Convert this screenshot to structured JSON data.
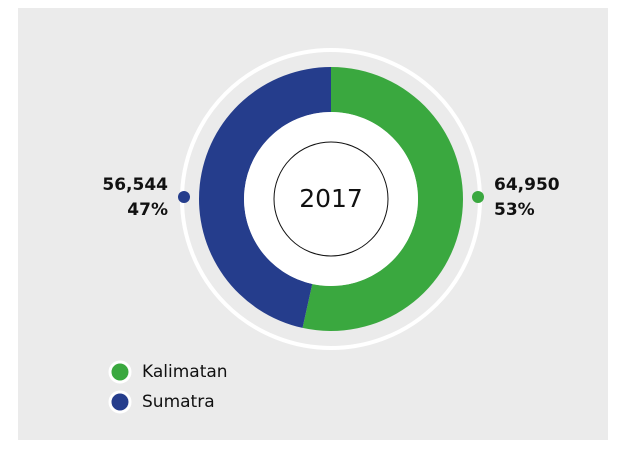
{
  "chart_data": {
    "type": "donut",
    "center_label": "2017",
    "categories": [
      "Kalimatan",
      "Sumatra"
    ],
    "values": [
      64950,
      56544
    ],
    "value_labels": [
      "64,950",
      "56,544"
    ],
    "percent_labels": [
      "53%",
      "47%"
    ],
    "colors": [
      "#3aa83f",
      "#253d8c"
    ],
    "legend": "bottom-left"
  }
}
